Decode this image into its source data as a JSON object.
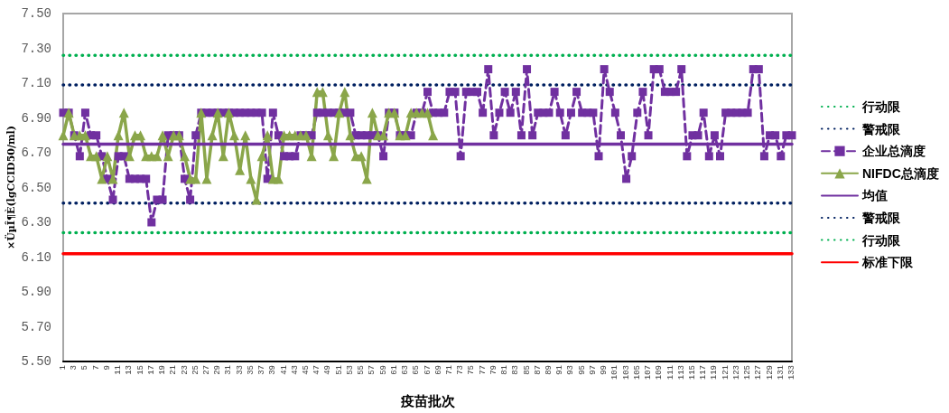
{
  "chart_data": {
    "type": "line",
    "xlabel": "疫苗批次",
    "ylabel": "×ÜµÎ¶È(lgCCID50/ml)",
    "ylim": [
      5.5,
      7.5
    ],
    "yticks": [
      {
        "value": 5.5,
        "label": "5.50"
      },
      {
        "value": 5.7,
        "label": "5.70"
      },
      {
        "value": 5.9,
        "label": "5.90"
      },
      {
        "value": 6.1,
        "label": "6.10"
      },
      {
        "value": 6.3,
        "label": "6.30"
      },
      {
        "value": 6.5,
        "label": "6.50"
      },
      {
        "value": 6.7,
        "label": "6.70"
      },
      {
        "value": 6.9,
        "label": "6.90"
      },
      {
        "value": 7.1,
        "label": "7.10"
      },
      {
        "value": 7.3,
        "label": "7.30"
      },
      {
        "value": 7.5,
        "label": "7.50"
      }
    ],
    "legend": "right",
    "categories": [
      "1",
      null,
      "3",
      null,
      "5",
      null,
      "7",
      null,
      "9",
      null,
      "11",
      null,
      "13",
      null,
      "15",
      null,
      "17",
      null,
      "19",
      null,
      "21",
      null,
      "23",
      null,
      "25",
      null,
      "27",
      null,
      "29",
      null,
      "31",
      null,
      "33",
      null,
      "35",
      null,
      "37",
      null,
      "39",
      null,
      "41",
      null,
      "43",
      null,
      "45",
      null,
      "47",
      null,
      "49",
      null,
      "51",
      null,
      "53",
      null,
      "55",
      null,
      "57",
      null,
      "59",
      null,
      "61",
      null,
      "63",
      null,
      "65",
      null,
      "67",
      null,
      "69",
      null,
      "71",
      null,
      "73",
      null,
      "75",
      null,
      "77",
      null,
      "79",
      null,
      "81",
      null,
      "83",
      null,
      "85",
      null,
      "87",
      null,
      "89",
      null,
      "91",
      null,
      "93",
      null,
      "95",
      null,
      "97",
      null,
      "99",
      null,
      "101",
      null,
      "103",
      null,
      "105",
      null,
      "107",
      null,
      "109",
      null,
      "111",
      null,
      "113",
      null,
      "115",
      null,
      "117",
      null,
      "119",
      null,
      "121",
      null,
      "123",
      null,
      "125",
      null,
      "127",
      null,
      "129",
      null,
      "131",
      null,
      "133"
    ],
    "series": [
      {
        "name": "行动限",
        "color": "#00b050",
        "marker": "none",
        "line_style": "dotted",
        "values": [
          7.26,
          7.26,
          7.26,
          7.26,
          7.26,
          7.26,
          7.26,
          7.26,
          7.26,
          7.26,
          7.26,
          7.26,
          7.26,
          7.26,
          7.26,
          7.26,
          7.26,
          7.26,
          7.26,
          7.26,
          7.26,
          7.26,
          7.26,
          7.26,
          7.26,
          7.26,
          7.26,
          7.26,
          7.26,
          7.26,
          7.26,
          7.26,
          7.26,
          7.26,
          7.26,
          7.26,
          7.26,
          7.26,
          7.26,
          7.26,
          7.26,
          7.26,
          7.26,
          7.26,
          7.26,
          7.26,
          7.26,
          7.26,
          7.26,
          7.26,
          7.26,
          7.26,
          7.26,
          7.26,
          7.26,
          7.26,
          7.26,
          7.26,
          7.26,
          7.26,
          7.26,
          7.26,
          7.26,
          7.26,
          7.26,
          7.26,
          7.26,
          7.26,
          7.26,
          7.26,
          7.26,
          7.26,
          7.26,
          7.26,
          7.26,
          7.26,
          7.26,
          7.26,
          7.26,
          7.26,
          7.26,
          7.26,
          7.26,
          7.26,
          7.26,
          7.26,
          7.26,
          7.26,
          7.26,
          7.26,
          7.26,
          7.26,
          7.26,
          7.26,
          7.26,
          7.26,
          7.26,
          7.26,
          7.26,
          7.26,
          7.26,
          7.26,
          7.26,
          7.26,
          7.26,
          7.26,
          7.26,
          7.26,
          7.26,
          7.26,
          7.26,
          7.26,
          7.26,
          7.26,
          7.26,
          7.26,
          7.26,
          7.26,
          7.26,
          7.26,
          7.26,
          7.26,
          7.26,
          7.26,
          7.26,
          7.26,
          7.26,
          7.26,
          7.26,
          7.26,
          7.26,
          7.26,
          7.26
        ]
      },
      {
        "name": "警戒限",
        "color": "#002060",
        "marker": "none",
        "line_style": "dotted",
        "values": [
          7.09,
          7.09,
          7.09,
          7.09,
          7.09,
          7.09,
          7.09,
          7.09,
          7.09,
          7.09,
          7.09,
          7.09,
          7.09,
          7.09,
          7.09,
          7.09,
          7.09,
          7.09,
          7.09,
          7.09,
          7.09,
          7.09,
          7.09,
          7.09,
          7.09,
          7.09,
          7.09,
          7.09,
          7.09,
          7.09,
          7.09,
          7.09,
          7.09,
          7.09,
          7.09,
          7.09,
          7.09,
          7.09,
          7.09,
          7.09,
          7.09,
          7.09,
          7.09,
          7.09,
          7.09,
          7.09,
          7.09,
          7.09,
          7.09,
          7.09,
          7.09,
          7.09,
          7.09,
          7.09,
          7.09,
          7.09,
          7.09,
          7.09,
          7.09,
          7.09,
          7.09,
          7.09,
          7.09,
          7.09,
          7.09,
          7.09,
          7.09,
          7.09,
          7.09,
          7.09,
          7.09,
          7.09,
          7.09,
          7.09,
          7.09,
          7.09,
          7.09,
          7.09,
          7.09,
          7.09,
          7.09,
          7.09,
          7.09,
          7.09,
          7.09,
          7.09,
          7.09,
          7.09,
          7.09,
          7.09,
          7.09,
          7.09,
          7.09,
          7.09,
          7.09,
          7.09,
          7.09,
          7.09,
          7.09,
          7.09,
          7.09,
          7.09,
          7.09,
          7.09,
          7.09,
          7.09,
          7.09,
          7.09,
          7.09,
          7.09,
          7.09,
          7.09,
          7.09,
          7.09,
          7.09,
          7.09,
          7.09,
          7.09,
          7.09,
          7.09,
          7.09,
          7.09,
          7.09,
          7.09,
          7.09,
          7.09,
          7.09,
          7.09,
          7.09,
          7.09,
          7.09,
          7.09,
          7.09
        ]
      },
      {
        "name": "企业总滴度",
        "color": "#7030a0",
        "marker": "square",
        "line_style": "dashed",
        "values": [
          6.93,
          6.93,
          6.8,
          6.68,
          6.93,
          6.8,
          6.8,
          6.68,
          6.55,
          6.43,
          6.68,
          6.68,
          6.55,
          6.55,
          6.55,
          6.55,
          6.3,
          6.43,
          6.43,
          6.8,
          6.8,
          6.8,
          6.55,
          6.43,
          6.8,
          6.93,
          6.93,
          6.93,
          6.93,
          6.93,
          6.93,
          6.93,
          6.93,
          6.93,
          6.93,
          6.93,
          6.93,
          6.55,
          6.93,
          6.8,
          6.68,
          6.68,
          6.68,
          6.8,
          6.8,
          6.8,
          6.93,
          6.93,
          6.93,
          6.93,
          6.93,
          6.93,
          6.93,
          6.8,
          6.8,
          6.8,
          6.8,
          6.8,
          6.68,
          6.93,
          6.93,
          6.8,
          6.8,
          6.8,
          6.93,
          6.93,
          7.05,
          6.93,
          6.93,
          6.93,
          7.05,
          7.05,
          6.68,
          7.05,
          7.05,
          7.05,
          6.93,
          7.18,
          6.8,
          6.93,
          7.05,
          6.93,
          7.05,
          6.8,
          7.18,
          6.8,
          6.93,
          6.93,
          6.93,
          7.05,
          6.93,
          6.8,
          6.93,
          7.05,
          6.93,
          6.93,
          6.93,
          6.68,
          7.18,
          7.05,
          6.93,
          6.8,
          6.55,
          6.68,
          6.93,
          7.05,
          6.8,
          7.18,
          7.18,
          7.05,
          7.05,
          7.05,
          7.18,
          6.68,
          6.8,
          6.8,
          6.93,
          6.68,
          6.8,
          6.68,
          6.93,
          6.93,
          6.93,
          6.93,
          6.93,
          7.18,
          7.18,
          6.68,
          6.8,
          6.8,
          6.68,
          6.8,
          6.8
        ]
      },
      {
        "name": "NIFDC总滴度",
        "color": "#8aa64a",
        "marker": "triangle",
        "line_style": "solid",
        "values": [
          6.8,
          6.93,
          6.8,
          6.8,
          6.8,
          6.68,
          6.68,
          6.55,
          6.68,
          6.55,
          6.8,
          6.93,
          6.68,
          6.8,
          6.8,
          6.68,
          6.68,
          6.68,
          6.8,
          6.68,
          6.8,
          6.8,
          6.68,
          6.55,
          6.55,
          6.93,
          6.55,
          6.8,
          6.93,
          6.68,
          6.93,
          6.8,
          6.6,
          6.8,
          6.55,
          6.43,
          6.68,
          6.8,
          6.55,
          6.55,
          6.8,
          6.8,
          6.8,
          6.8,
          6.8,
          6.68,
          7.05,
          7.05,
          6.8,
          6.68,
          6.93,
          7.05,
          6.8,
          6.68,
          6.68,
          6.55,
          6.93,
          6.8,
          6.8,
          6.93,
          6.93,
          6.8,
          6.8,
          6.93,
          6.93,
          6.93,
          6.93,
          6.8,
          null,
          null,
          null,
          null,
          null,
          null,
          null,
          null,
          null,
          null,
          null,
          null,
          null,
          null,
          null,
          null,
          null,
          null,
          null,
          null,
          null,
          null,
          null,
          null,
          null,
          null,
          null,
          null,
          null,
          null,
          null,
          null,
          null,
          null,
          null,
          null,
          null,
          null,
          null,
          null,
          null,
          null,
          null,
          null,
          null,
          null,
          null,
          null,
          null,
          null,
          null,
          null,
          null,
          null,
          null,
          null,
          null,
          null,
          null,
          null,
          null,
          null,
          null,
          null,
          null
        ]
      },
      {
        "name": "均值",
        "color": "#7030a0",
        "marker": "none",
        "line_style": "solid",
        "values": [
          6.75,
          6.75,
          6.75,
          6.75,
          6.75,
          6.75,
          6.75,
          6.75,
          6.75,
          6.75,
          6.75,
          6.75,
          6.75,
          6.75,
          6.75,
          6.75,
          6.75,
          6.75,
          6.75,
          6.75,
          6.75,
          6.75,
          6.75,
          6.75,
          6.75,
          6.75,
          6.75,
          6.75,
          6.75,
          6.75,
          6.75,
          6.75,
          6.75,
          6.75,
          6.75,
          6.75,
          6.75,
          6.75,
          6.75,
          6.75,
          6.75,
          6.75,
          6.75,
          6.75,
          6.75,
          6.75,
          6.75,
          6.75,
          6.75,
          6.75,
          6.75,
          6.75,
          6.75,
          6.75,
          6.75,
          6.75,
          6.75,
          6.75,
          6.75,
          6.75,
          6.75,
          6.75,
          6.75,
          6.75,
          6.75,
          6.75,
          6.75,
          6.75,
          6.75,
          6.75,
          6.75,
          6.75,
          6.75,
          6.75,
          6.75,
          6.75,
          6.75,
          6.75,
          6.75,
          6.75,
          6.75,
          6.75,
          6.75,
          6.75,
          6.75,
          6.75,
          6.75,
          6.75,
          6.75,
          6.75,
          6.75,
          6.75,
          6.75,
          6.75,
          6.75,
          6.75,
          6.75,
          6.75,
          6.75,
          6.75,
          6.75,
          6.75,
          6.75,
          6.75,
          6.75,
          6.75,
          6.75,
          6.75,
          6.75,
          6.75,
          6.75,
          6.75,
          6.75,
          6.75,
          6.75,
          6.75,
          6.75,
          6.75,
          6.75,
          6.75,
          6.75,
          6.75,
          6.75,
          6.75,
          6.75,
          6.75,
          6.75,
          6.75,
          6.75,
          6.75,
          6.75,
          6.75,
          6.75
        ]
      },
      {
        "name": "警戒限",
        "color": "#002060",
        "marker": "none",
        "line_style": "dotted",
        "values": [
          6.41,
          6.41,
          6.41,
          6.41,
          6.41,
          6.41,
          6.41,
          6.41,
          6.41,
          6.41,
          6.41,
          6.41,
          6.41,
          6.41,
          6.41,
          6.41,
          6.41,
          6.41,
          6.41,
          6.41,
          6.41,
          6.41,
          6.41,
          6.41,
          6.41,
          6.41,
          6.41,
          6.41,
          6.41,
          6.41,
          6.41,
          6.41,
          6.41,
          6.41,
          6.41,
          6.41,
          6.41,
          6.41,
          6.41,
          6.41,
          6.41,
          6.41,
          6.41,
          6.41,
          6.41,
          6.41,
          6.41,
          6.41,
          6.41,
          6.41,
          6.41,
          6.41,
          6.41,
          6.41,
          6.41,
          6.41,
          6.41,
          6.41,
          6.41,
          6.41,
          6.41,
          6.41,
          6.41,
          6.41,
          6.41,
          6.41,
          6.41,
          6.41,
          6.41,
          6.41,
          6.41,
          6.41,
          6.41,
          6.41,
          6.41,
          6.41,
          6.41,
          6.41,
          6.41,
          6.41,
          6.41,
          6.41,
          6.41,
          6.41,
          6.41,
          6.41,
          6.41,
          6.41,
          6.41,
          6.41,
          6.41,
          6.41,
          6.41,
          6.41,
          6.41,
          6.41,
          6.41,
          6.41,
          6.41,
          6.41,
          6.41,
          6.41,
          6.41,
          6.41,
          6.41,
          6.41,
          6.41,
          6.41,
          6.41,
          6.41,
          6.41,
          6.41,
          6.41,
          6.41,
          6.41,
          6.41,
          6.41,
          6.41,
          6.41,
          6.41,
          6.41,
          6.41,
          6.41,
          6.41,
          6.41,
          6.41,
          6.41,
          6.41,
          6.41,
          6.41,
          6.41,
          6.41,
          6.41
        ]
      },
      {
        "name": "行动限",
        "color": "#00b050",
        "marker": "none",
        "line_style": "dotted",
        "values": [
          6.24,
          6.24,
          6.24,
          6.24,
          6.24,
          6.24,
          6.24,
          6.24,
          6.24,
          6.24,
          6.24,
          6.24,
          6.24,
          6.24,
          6.24,
          6.24,
          6.24,
          6.24,
          6.24,
          6.24,
          6.24,
          6.24,
          6.24,
          6.24,
          6.24,
          6.24,
          6.24,
          6.24,
          6.24,
          6.24,
          6.24,
          6.24,
          6.24,
          6.24,
          6.24,
          6.24,
          6.24,
          6.24,
          6.24,
          6.24,
          6.24,
          6.24,
          6.24,
          6.24,
          6.24,
          6.24,
          6.24,
          6.24,
          6.24,
          6.24,
          6.24,
          6.24,
          6.24,
          6.24,
          6.24,
          6.24,
          6.24,
          6.24,
          6.24,
          6.24,
          6.24,
          6.24,
          6.24,
          6.24,
          6.24,
          6.24,
          6.24,
          6.24,
          6.24,
          6.24,
          6.24,
          6.24,
          6.24,
          6.24,
          6.24,
          6.24,
          6.24,
          6.24,
          6.24,
          6.24,
          6.24,
          6.24,
          6.24,
          6.24,
          6.24,
          6.24,
          6.24,
          6.24,
          6.24,
          6.24,
          6.24,
          6.24,
          6.24,
          6.24,
          6.24,
          6.24,
          6.24,
          6.24,
          6.24,
          6.24,
          6.24,
          6.24,
          6.24,
          6.24,
          6.24,
          6.24,
          6.24,
          6.24,
          6.24,
          6.24,
          6.24,
          6.24,
          6.24,
          6.24,
          6.24,
          6.24,
          6.24,
          6.24,
          6.24,
          6.24,
          6.24,
          6.24,
          6.24,
          6.24,
          6.24,
          6.24,
          6.24,
          6.24,
          6.24,
          6.24,
          6.24,
          6.24,
          6.24
        ]
      },
      {
        "name": "标准下限",
        "color": "#ff0000",
        "marker": "none",
        "line_style": "solid",
        "values": [
          6.12,
          6.12,
          6.12,
          6.12,
          6.12,
          6.12,
          6.12,
          6.12,
          6.12,
          6.12,
          6.12,
          6.12,
          6.12,
          6.12,
          6.12,
          6.12,
          6.12,
          6.12,
          6.12,
          6.12,
          6.12,
          6.12,
          6.12,
          6.12,
          6.12,
          6.12,
          6.12,
          6.12,
          6.12,
          6.12,
          6.12,
          6.12,
          6.12,
          6.12,
          6.12,
          6.12,
          6.12,
          6.12,
          6.12,
          6.12,
          6.12,
          6.12,
          6.12,
          6.12,
          6.12,
          6.12,
          6.12,
          6.12,
          6.12,
          6.12,
          6.12,
          6.12,
          6.12,
          6.12,
          6.12,
          6.12,
          6.12,
          6.12,
          6.12,
          6.12,
          6.12,
          6.12,
          6.12,
          6.12,
          6.12,
          6.12,
          6.12,
          6.12,
          6.12,
          6.12,
          6.12,
          6.12,
          6.12,
          6.12,
          6.12,
          6.12,
          6.12,
          6.12,
          6.12,
          6.12,
          6.12,
          6.12,
          6.12,
          6.12,
          6.12,
          6.12,
          6.12,
          6.12,
          6.12,
          6.12,
          6.12,
          6.12,
          6.12,
          6.12,
          6.12,
          6.12,
          6.12,
          6.12,
          6.12,
          6.12,
          6.12,
          6.12,
          6.12,
          6.12,
          6.12,
          6.12,
          6.12,
          6.12,
          6.12,
          6.12,
          6.12,
          6.12,
          6.12,
          6.12,
          6.12,
          6.12,
          6.12,
          6.12,
          6.12,
          6.12,
          6.12,
          6.12,
          6.12,
          6.12,
          6.12,
          6.12,
          6.12,
          6.12,
          6.12,
          6.12,
          6.12,
          6.12,
          6.12
        ]
      }
    ]
  }
}
